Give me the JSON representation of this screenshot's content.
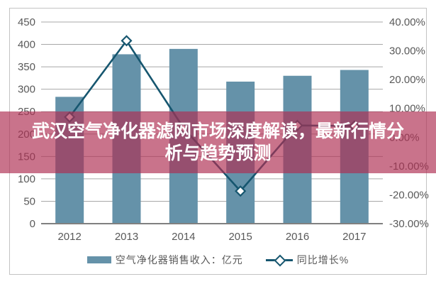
{
  "overlay": {
    "title_line1": "武汉空气净化器滤网市场深度解读，最新行情分",
    "title_line2": "析与趋势预测",
    "background": "rgba(175,46,82,0.67)",
    "text_color": "#ffffff"
  },
  "legend": {
    "bar_label": "空气净化器销售收入：亿元",
    "line_label": "同比增长%"
  },
  "chart_data": {
    "type": "bar",
    "subtype": "bar-line-combo",
    "categories": [
      "2012",
      "2013",
      "2014",
      "2015",
      "2016",
      "2017"
    ],
    "series": [
      {
        "name": "空气净化器销售收入：亿元",
        "type": "bar",
        "axis": "left",
        "values": [
          283,
          378,
          390,
          317,
          330,
          343
        ],
        "color": "#6592a9"
      },
      {
        "name": "同比增长%",
        "type": "line",
        "axis": "right",
        "values": [
          7.0,
          33.5,
          3.2,
          -18.7,
          4.1,
          3.9
        ],
        "color": "#16566f",
        "marker": "diamond",
        "marker_fill": "#ffffff"
      }
    ],
    "left_axis": {
      "min": 0,
      "max": 450,
      "step": 50,
      "ticks": [
        "450",
        "400",
        "350",
        "300",
        "250",
        "200",
        "150",
        "100",
        "50",
        "0"
      ]
    },
    "right_axis": {
      "min": -30,
      "max": 40,
      "step": 10,
      "ticks": [
        "40.00%",
        "30.00%",
        "20.00%",
        "10.00%",
        "0.00%",
        "-10.00%",
        "-20.00%",
        "-30.00%"
      ]
    },
    "grid": true,
    "gridline_color": "#a8a8a8",
    "zero_axis_color": "#808080",
    "axis_label_color": "#595959",
    "legend_position": "bottom",
    "title": "",
    "xlabel": "",
    "ylabel": ""
  }
}
